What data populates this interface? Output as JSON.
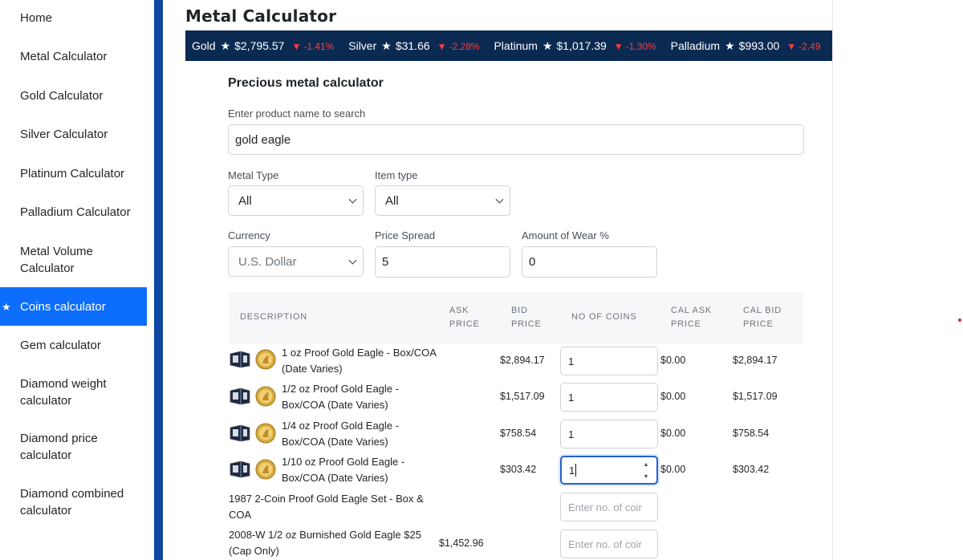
{
  "sidebar": {
    "items": [
      {
        "label": "Home"
      },
      {
        "label": "Metal Calculator"
      },
      {
        "label": "Gold Calculator"
      },
      {
        "label": "Silver Calculator"
      },
      {
        "label": "Platinum Calculator"
      },
      {
        "label": "Palladium Calculator"
      },
      {
        "label": "Metal Volume Calculator"
      },
      {
        "label": "Coins calculator",
        "active": true,
        "marker": "★"
      },
      {
        "label": "Gem calculator"
      },
      {
        "label": "Diamond weight calculator"
      },
      {
        "label": "Diamond price calculator"
      },
      {
        "label": "Diamond combined calculator"
      }
    ],
    "accent_color": "#0d6efd",
    "border_color": "#0d47a1"
  },
  "page": {
    "title": "Metal Calculator"
  },
  "ticker": {
    "background": "#0b2a52",
    "down_color": "#ff3b3b",
    "items": [
      {
        "name": "Gold",
        "star": "★",
        "price": "$2,795.57",
        "arrow": "▼",
        "change": "-1.41%"
      },
      {
        "name": "Silver",
        "star": "★",
        "price": "$31.66",
        "arrow": "▼",
        "change": "-2.28%"
      },
      {
        "name": "Platinum",
        "star": "★",
        "price": "$1,017.39",
        "arrow": "▼",
        "change": "-1.30%"
      },
      {
        "name": "Palladium",
        "star": "★",
        "price": "$993.00",
        "arrow": "▼",
        "change": "-2.49"
      }
    ]
  },
  "form": {
    "heading": "Precious metal calculator",
    "search_label": "Enter product name to search",
    "search_value": "gold eagle",
    "metal_type_label": "Metal Type",
    "metal_type_value": "All",
    "item_type_label": "Item type",
    "item_type_value": "All",
    "currency_label": "Currency",
    "currency_value": "U.S. Dollar",
    "spread_label": "Price Spread",
    "spread_value": "5",
    "wear_label": "Amount of Wear %",
    "wear_value": "0"
  },
  "table": {
    "headers": {
      "description": "DESCRIPTION",
      "ask_1": "ASK",
      "ask_2": "PRICE",
      "bid_1": "BID",
      "bid_2": "PRICE",
      "coins": "NO OF COINS",
      "cal_ask_1": "CAL ASK",
      "cal_ask_2": "PRICE",
      "cal_bid_1": "CAL BID",
      "cal_bid_2": "PRICE"
    },
    "placeholder": "Enter no. of coir",
    "rows": [
      {
        "line1": "1 oz Proof Gold Eagle - Box/COA",
        "line2": "(Date Varies)",
        "ask": "",
        "bid": "$2,894.17",
        "coins": "1",
        "cal_ask": "$0.00",
        "cal_bid": "$2,894.17"
      },
      {
        "line1": "1/2 oz Proof Gold Eagle -",
        "line2": "Box/COA (Date Varies)",
        "ask": "",
        "bid": "$1,517.09",
        "coins": "1",
        "cal_ask": "$0.00",
        "cal_bid": "$1,517.09"
      },
      {
        "line1": "1/4 oz Proof Gold Eagle -",
        "line2": "Box/COA (Date Varies)",
        "ask": "",
        "bid": "$758.54",
        "coins": "1",
        "cal_ask": "$0.00",
        "cal_bid": "$758.54"
      },
      {
        "line1": "1/10 oz Proof Gold Eagle -",
        "line2": "Box/COA (Date Varies)",
        "ask": "",
        "bid": "$303.42",
        "coins": "1",
        "cal_ask": "$0.00",
        "cal_bid": "$303.42"
      },
      {
        "line1": "1987 2-Coin Proof Gold Eagle Set - Box &",
        "line2": "COA",
        "ask": "",
        "bid": "",
        "coins": "",
        "cal_ask": "",
        "cal_bid": ""
      },
      {
        "line1": "2008-W 1/2 oz Burnished Gold Eagle $25",
        "line2": "(Cap Only)",
        "ask": "$1,452.96",
        "bid": "",
        "coins": "",
        "cal_ask": "",
        "cal_bid": ""
      }
    ]
  }
}
